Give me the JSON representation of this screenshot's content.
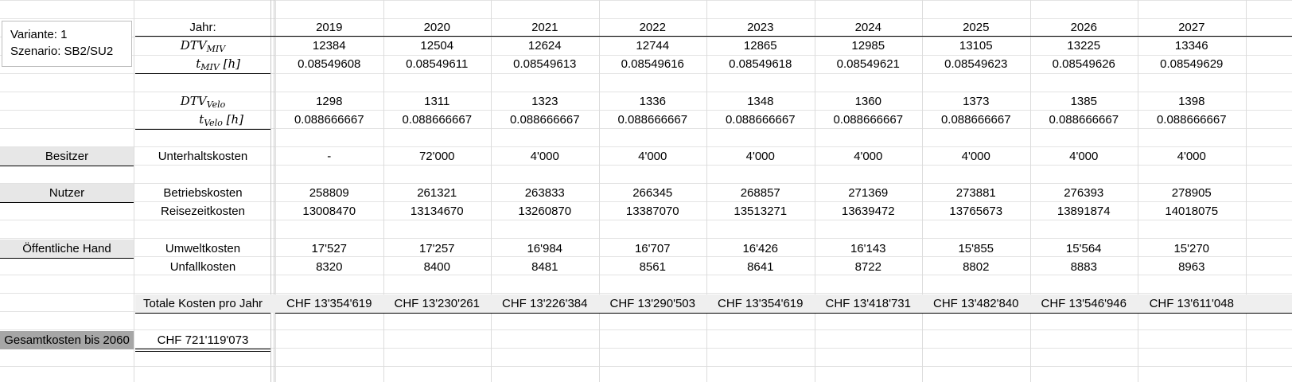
{
  "info": {
    "variante": "Variante: 1",
    "szenario": "Szenario: SB2/SU2"
  },
  "header_label": "Jahr:",
  "years": [
    "2019",
    "2020",
    "2021",
    "2022",
    "2023",
    "2024",
    "2025",
    "2026",
    "2027"
  ],
  "row_labels": {
    "dtv_miv": {
      "base": "DTV",
      "sub": "MIV"
    },
    "t_miv": {
      "base": "t",
      "sub": "MIV",
      "unit": "[h]"
    },
    "dtv_velo": {
      "base": "DTV",
      "sub": "Velo"
    },
    "t_velo": {
      "base": "t",
      "sub": "Velo",
      "unit": "[h]"
    }
  },
  "rows": {
    "dtv_miv": [
      "12384",
      "12504",
      "12624",
      "12744",
      "12865",
      "12985",
      "13105",
      "13225",
      "13346"
    ],
    "t_miv": [
      "0.08549608",
      "0.08549611",
      "0.08549613",
      "0.08549616",
      "0.08549618",
      "0.08549621",
      "0.08549623",
      "0.08549626",
      "0.08549629"
    ],
    "dtv_velo": [
      "1298",
      "1311",
      "1323",
      "1336",
      "1348",
      "1360",
      "1373",
      "1385",
      "1398"
    ],
    "t_velo": [
      "0.088666667",
      "0.088666667",
      "0.088666667",
      "0.088666667",
      "0.088666667",
      "0.088666667",
      "0.088666667",
      "0.088666667",
      "0.088666667"
    ]
  },
  "categories": {
    "besitzer": {
      "label": "Besitzer",
      "items": [
        {
          "label": "Unterhaltskosten",
          "values": [
            "-",
            "72'000",
            "4'000",
            "4'000",
            "4'000",
            "4'000",
            "4'000",
            "4'000",
            "4'000"
          ]
        }
      ]
    },
    "nutzer": {
      "label": "Nutzer",
      "items": [
        {
          "label": "Betriebskosten",
          "values": [
            "258809",
            "261321",
            "263833",
            "266345",
            "268857",
            "271369",
            "273881",
            "276393",
            "278905"
          ]
        },
        {
          "label": "Reisezeitkosten",
          "values": [
            "13008470",
            "13134670",
            "13260870",
            "13387070",
            "13513271",
            "13639472",
            "13765673",
            "13891874",
            "14018075"
          ]
        }
      ]
    },
    "oeffentliche_hand": {
      "label": "Öffentliche Hand",
      "items": [
        {
          "label": "Umweltkosten",
          "values": [
            "17'527",
            "17'257",
            "16'984",
            "16'707",
            "16'426",
            "16'143",
            "15'855",
            "15'564",
            "15'270"
          ]
        },
        {
          "label": "Unfallkosten",
          "values": [
            "8320",
            "8400",
            "8481",
            "8561",
            "8641",
            "8722",
            "8802",
            "8883",
            "8963"
          ]
        }
      ]
    }
  },
  "totals": {
    "label": "Totale Kosten pro Jahr",
    "values": [
      "CHF 13'354'619",
      "CHF 13'230'261",
      "CHF 13'226'384",
      "CHF 13'290'503",
      "CHF 13'354'619",
      "CHF 13'418'731",
      "CHF 13'482'840",
      "CHF 13'546'946",
      "CHF 13'611'048"
    ]
  },
  "gesamt": {
    "label": "Gesamtkosten bis 2060",
    "value": "CHF 721'119'073"
  }
}
